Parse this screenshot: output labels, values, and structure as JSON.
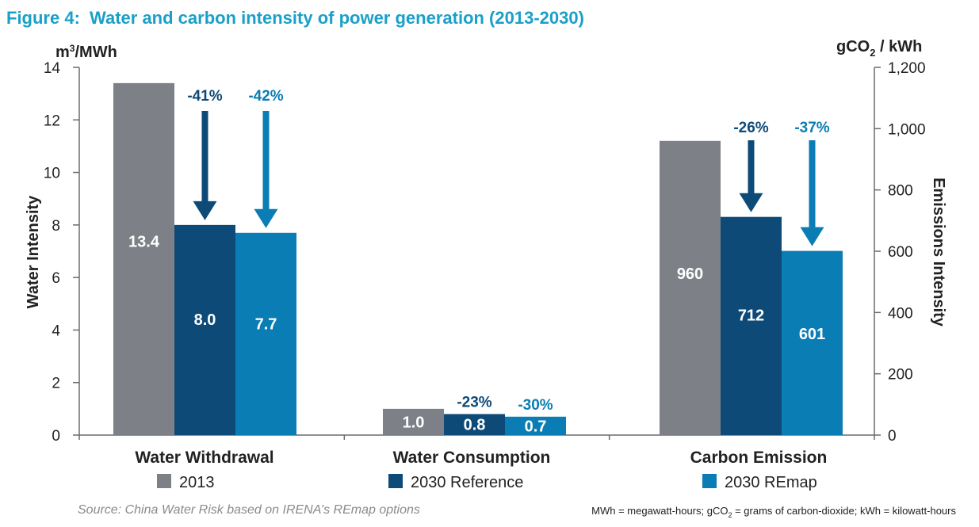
{
  "title": {
    "prefix": "Figure 4:",
    "text": "Water and carbon intensity of power generation (2013-2030)"
  },
  "left_axis": {
    "unit_main": "m",
    "unit_sup": "3",
    "unit_rest": "/MWh",
    "label": "Water Intensity"
  },
  "right_axis": {
    "unit_a": "gCO",
    "unit_sub": "2",
    "unit_b": " / kWh",
    "label": "Emissions Intensity"
  },
  "source": "Source: China Water Risk based on IRENA’s REmap options",
  "footnote": {
    "a": "MWh = megawatt-hours; gCO",
    "sub": "2",
    "b": " = grams of carbon-dioxide; kWh = kilowatt-hours"
  },
  "colors": {
    "2013": "#7d8187",
    "2030 Reference": "#0e4a78",
    "2030 REmap": "#0a7db4"
  },
  "chart_data": {
    "type": "bar",
    "title": "Figure 4: Water and carbon intensity of power generation (2013-2030)",
    "categories": [
      "Water Withdrawal",
      "Water Consumption",
      "Carbon Emission"
    ],
    "series": [
      {
        "name": "2013",
        "values": [
          13.4,
          1.0,
          960
        ],
        "labels": [
          "13.4",
          "1.0",
          "960"
        ]
      },
      {
        "name": "2030 Reference",
        "values": [
          8.0,
          0.8,
          712
        ],
        "labels": [
          "8.0",
          "0.8",
          "712"
        ]
      },
      {
        "name": "2030 REmap",
        "values": [
          7.7,
          0.7,
          601
        ],
        "labels": [
          "7.7",
          "0.7",
          "601"
        ]
      }
    ],
    "changes": [
      {
        "category": "Water Withdrawal",
        "ref": "-41%",
        "remap": "-42%"
      },
      {
        "category": "Water Consumption",
        "ref": "-23%",
        "remap": "-30%"
      },
      {
        "category": "Carbon Emission",
        "ref": "-26%",
        "remap": "-37%"
      }
    ],
    "axis_assignment": [
      "left",
      "left",
      "right"
    ],
    "ylabel_left": "Water Intensity",
    "ylabel_right": "Emissions Intensity",
    "ylim_left": [
      0,
      14
    ],
    "ylim_right": [
      0,
      1200
    ],
    "yticks_left": [
      "0",
      "2",
      "4",
      "6",
      "8",
      "10",
      "12",
      "14"
    ],
    "yticks_right": [
      "0",
      "200",
      "400",
      "600",
      "800",
      "1,000",
      "1,200"
    ],
    "grid": false,
    "legend_position": "bottom"
  }
}
